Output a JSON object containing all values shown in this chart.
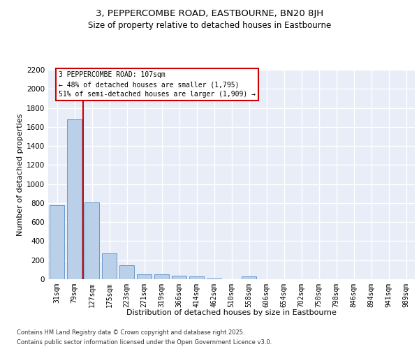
{
  "title": "3, PEPPERCOMBE ROAD, EASTBOURNE, BN20 8JH",
  "subtitle": "Size of property relative to detached houses in Eastbourne",
  "xlabel": "Distribution of detached houses by size in Eastbourne",
  "ylabel": "Number of detached properties",
  "categories": [
    "31sqm",
    "79sqm",
    "127sqm",
    "175sqm",
    "223sqm",
    "271sqm",
    "319sqm",
    "366sqm",
    "414sqm",
    "462sqm",
    "510sqm",
    "558sqm",
    "606sqm",
    "654sqm",
    "702sqm",
    "750sqm",
    "798sqm",
    "846sqm",
    "894sqm",
    "941sqm",
    "989sqm"
  ],
  "values": [
    780,
    1680,
    810,
    270,
    150,
    50,
    50,
    40,
    30,
    10,
    0,
    30,
    0,
    0,
    0,
    0,
    0,
    0,
    0,
    0,
    0
  ],
  "bar_color": "#bad0e8",
  "bar_edge_color": "#6699cc",
  "vline_position": 1.5,
  "vline_color": "#cc0000",
  "annotation_text": "3 PEPPERCOMBE ROAD: 107sqm\n← 48% of detached houses are smaller (1,795)\n51% of semi-detached houses are larger (1,909) →",
  "annotation_box_edgecolor": "#cc0000",
  "ylim": [
    0,
    2200
  ],
  "yticks": [
    0,
    200,
    400,
    600,
    800,
    1000,
    1200,
    1400,
    1600,
    1800,
    2000,
    2200
  ],
  "background_color": "#e8edf8",
  "grid_color": "#ffffff",
  "footer_line1": "Contains HM Land Registry data © Crown copyright and database right 2025.",
  "footer_line2": "Contains public sector information licensed under the Open Government Licence v3.0."
}
